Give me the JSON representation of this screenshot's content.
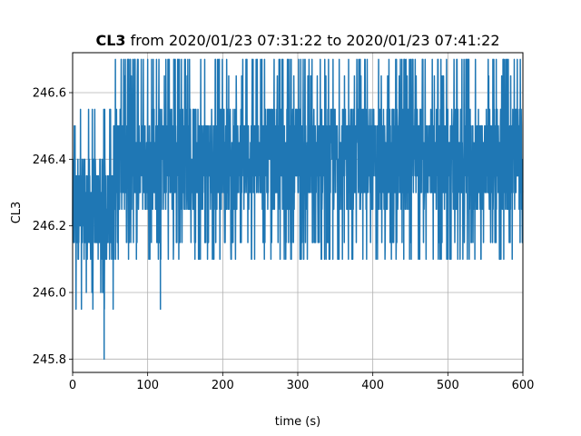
{
  "chart_data": {
    "type": "line",
    "title": {
      "bold": "CL3",
      "rest": " from 2020/01/23 07:31:22 to 2020/01/23 07:41:22"
    },
    "xlabel": "time (s)",
    "ylabel": "CL3",
    "xlim": [
      0,
      600
    ],
    "ylim": [
      245.76,
      246.72
    ],
    "xticks": [
      0,
      100,
      200,
      300,
      400,
      500,
      600
    ],
    "xtick_labels": [
      "0",
      "100",
      "200",
      "300",
      "400",
      "500",
      "600"
    ],
    "yticks": [
      245.8,
      246.0,
      246.2,
      246.4,
      246.6
    ],
    "ytick_labels": [
      "245.8",
      "246.0",
      "246.2",
      "246.4",
      "246.6"
    ],
    "grid": true,
    "series": [
      {
        "color": "#1f77b4",
        "segments": [
          {
            "x_start": 0,
            "x_end": 55,
            "min": 245.95,
            "max": 246.55,
            "dense_min": 246.1,
            "dense_max": 246.4
          },
          {
            "x_start": 55,
            "x_end": 600,
            "min": 246.1,
            "max": 246.7,
            "dense_min": 246.25,
            "dense_max": 246.55
          }
        ],
        "spikes": [
          {
            "x": 42,
            "y": 245.8
          },
          {
            "x": 117,
            "y": 245.95
          }
        ]
      }
    ]
  }
}
